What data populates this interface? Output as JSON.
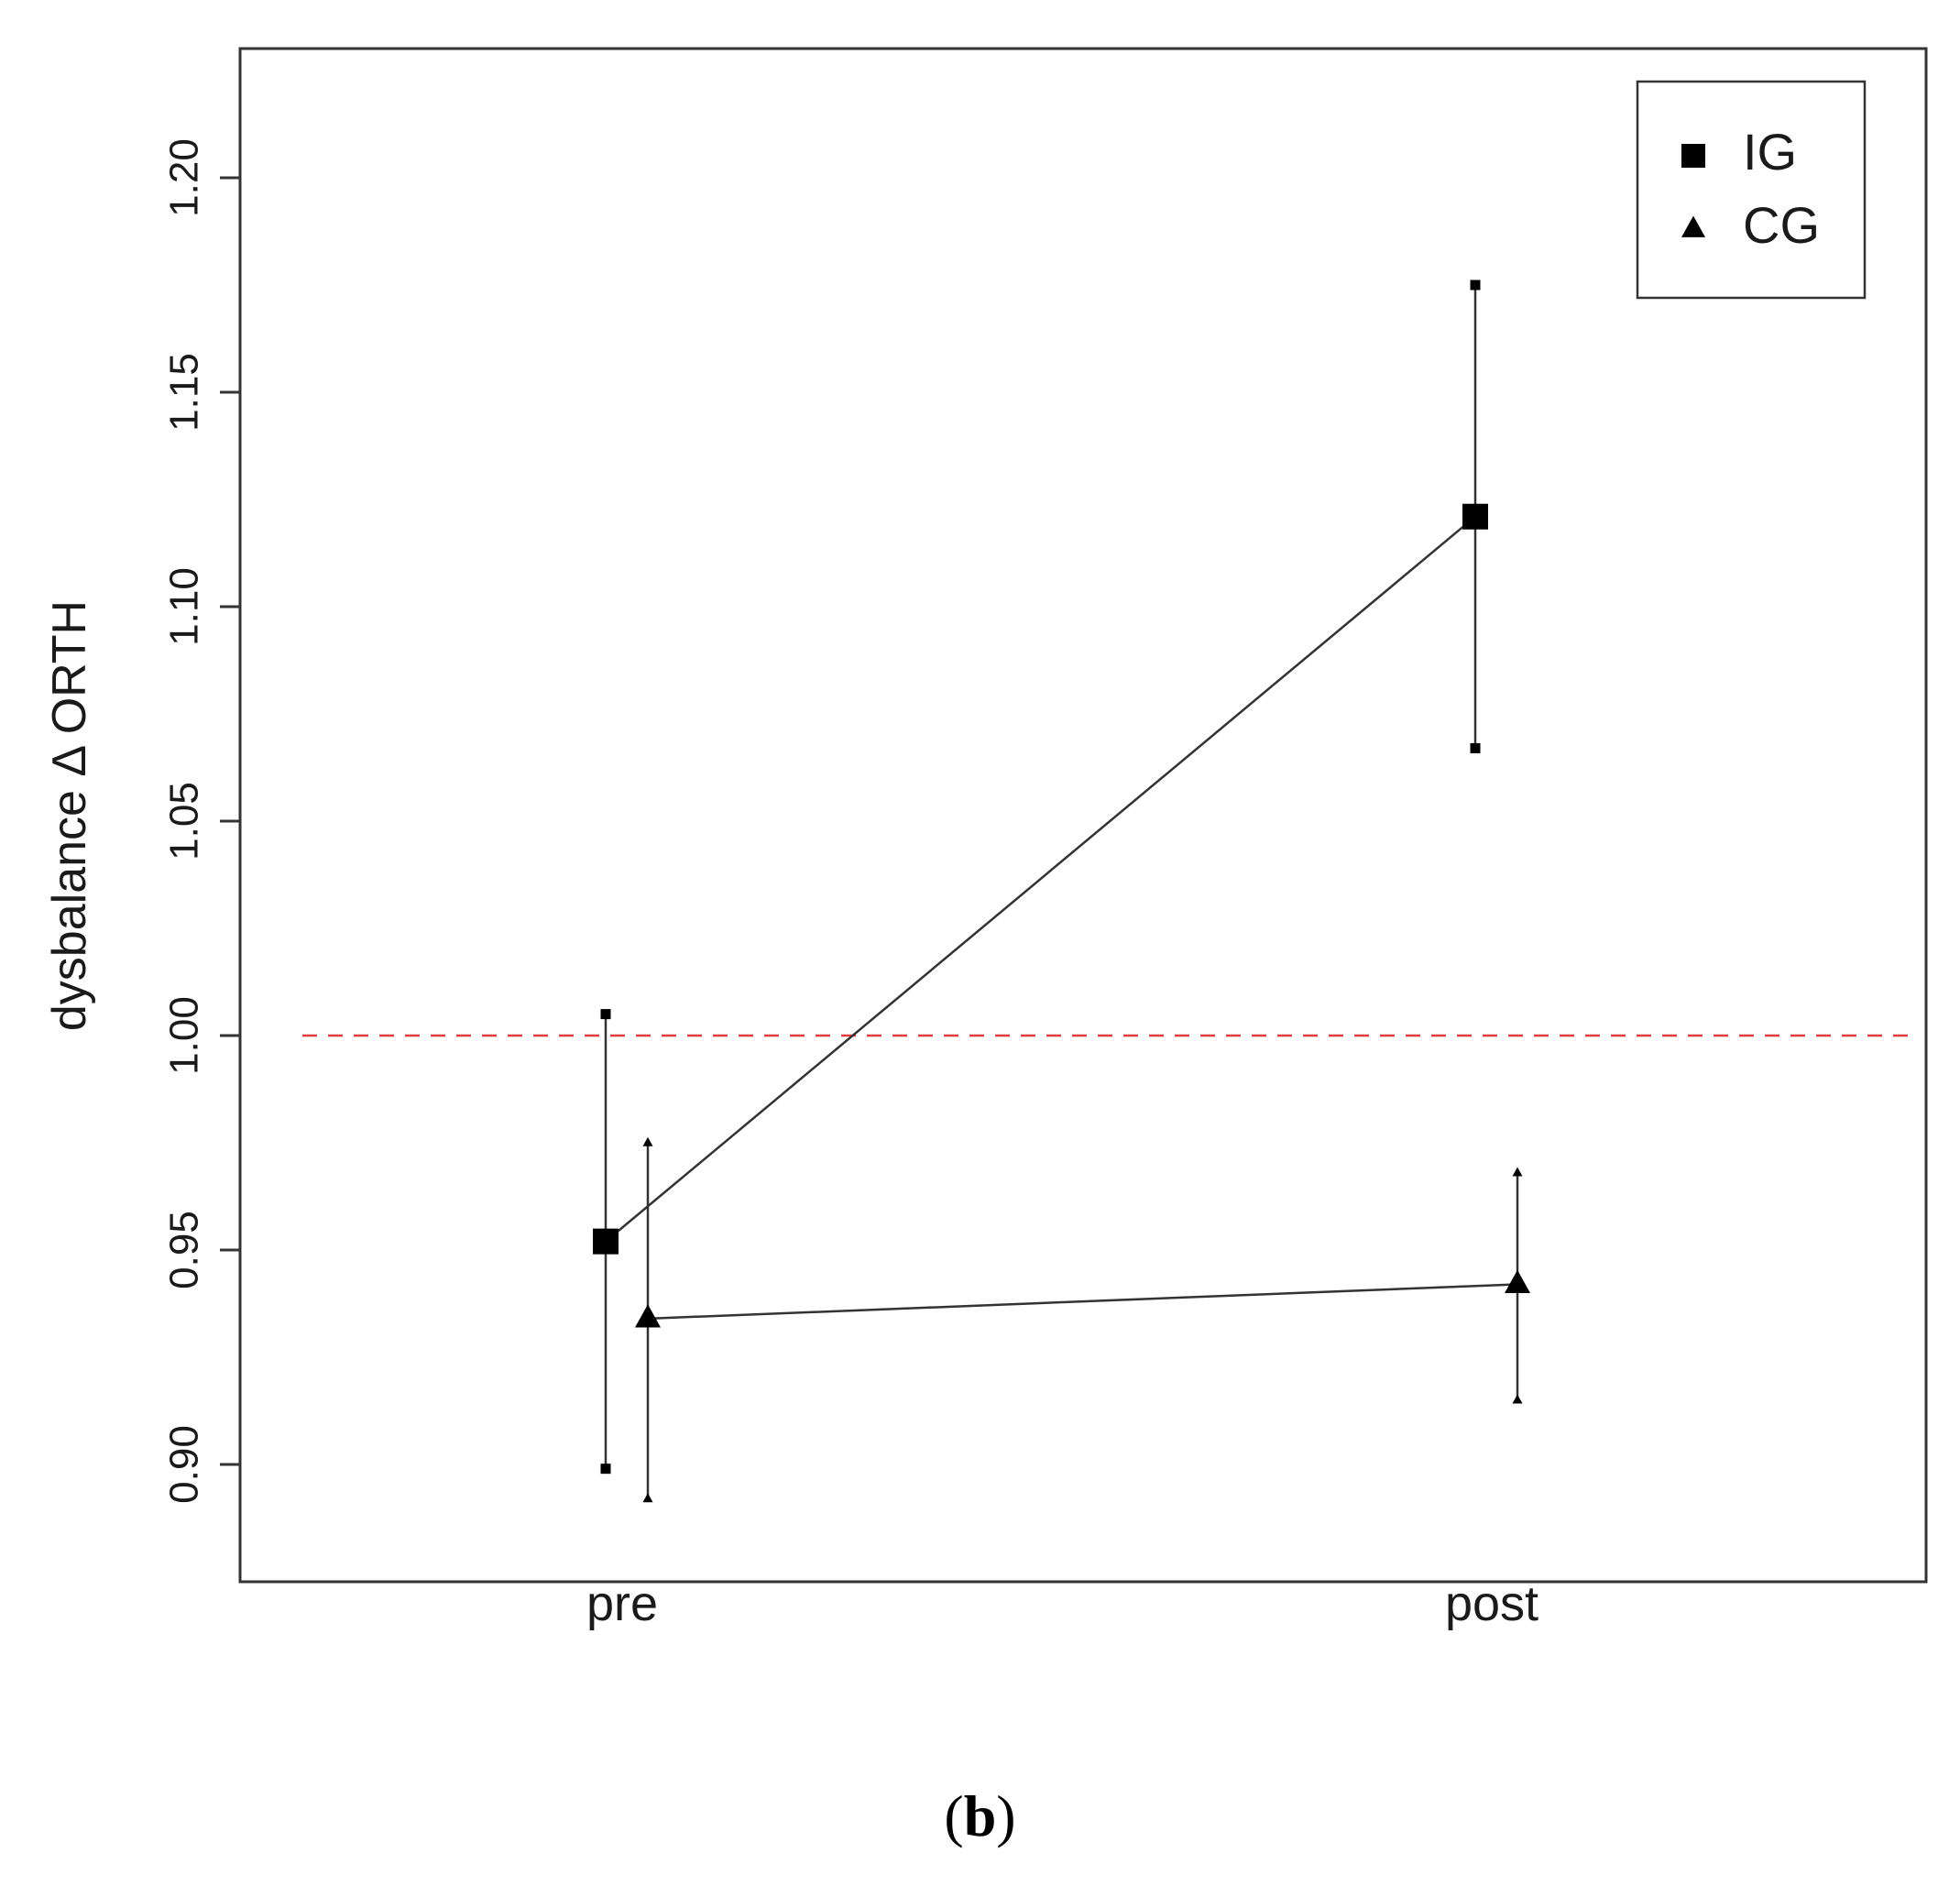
{
  "chart_data": {
    "type": "line",
    "categories": [
      "pre",
      "post"
    ],
    "ylabel": "dysbalance  Δ ORTH",
    "xlabel": "",
    "ylim": [
      0.88,
      1.23
    ],
    "yticks": [
      "0.90",
      "0.95",
      "1.00",
      "1.05",
      "1.10",
      "1.15",
      "1.20"
    ],
    "grid": false,
    "legend_position": "top-right",
    "reference_line": {
      "y": 1.0,
      "style": "dashed",
      "color": "#e03c3c"
    },
    "series": [
      {
        "name": "IG",
        "marker": "square",
        "values": [
          0.952,
          1.121
        ],
        "lower": [
          0.899,
          1.067
        ],
        "upper": [
          1.005,
          1.175
        ]
      },
      {
        "name": "CG",
        "marker": "triangle",
        "values": [
          0.934,
          0.942
        ],
        "lower": [
          0.892,
          0.915
        ],
        "upper": [
          0.975,
          0.968
        ]
      }
    ]
  },
  "caption": "(b)"
}
